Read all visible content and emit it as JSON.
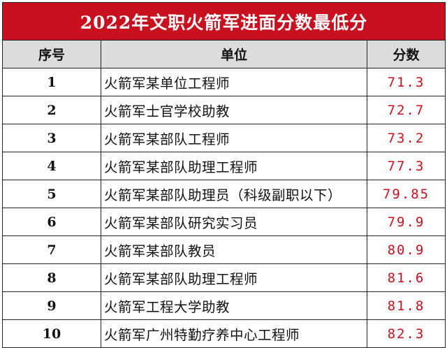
{
  "title": "2022年文职火箭军进面分数最低分",
  "headers": {
    "index": "序号",
    "unit": "单位",
    "score": "分数"
  },
  "rows": [
    {
      "index": "1",
      "unit": "火箭军某单位工程师",
      "score": "71.3"
    },
    {
      "index": "2",
      "unit": "火箭军士官学校助教",
      "score": "72.7"
    },
    {
      "index": "3",
      "unit": "火箭军某部队工程师",
      "score": "73.2"
    },
    {
      "index": "4",
      "unit": "火箭军某部队助理工程师",
      "score": "77.3"
    },
    {
      "index": "5",
      "unit": "火箭军某部队助理员（科级副职以下）",
      "score": "79.85"
    },
    {
      "index": "6",
      "unit": "火箭军某部队研究实习员",
      "score": "79.9"
    },
    {
      "index": "7",
      "unit": "火箭军某部队教员",
      "score": "80.9"
    },
    {
      "index": "8",
      "unit": "火箭军某部队助理工程师",
      "score": "81.6"
    },
    {
      "index": "9",
      "unit": "火箭军工程大学助教",
      "score": "81.8"
    },
    {
      "index": "10",
      "unit": "火箭军广州特勤疗养中心工程师",
      "score": "82.3"
    }
  ],
  "colors": {
    "title_bg": "#c8101e",
    "score_text": "#c8101e",
    "header_bg": "#dcdcdc"
  }
}
